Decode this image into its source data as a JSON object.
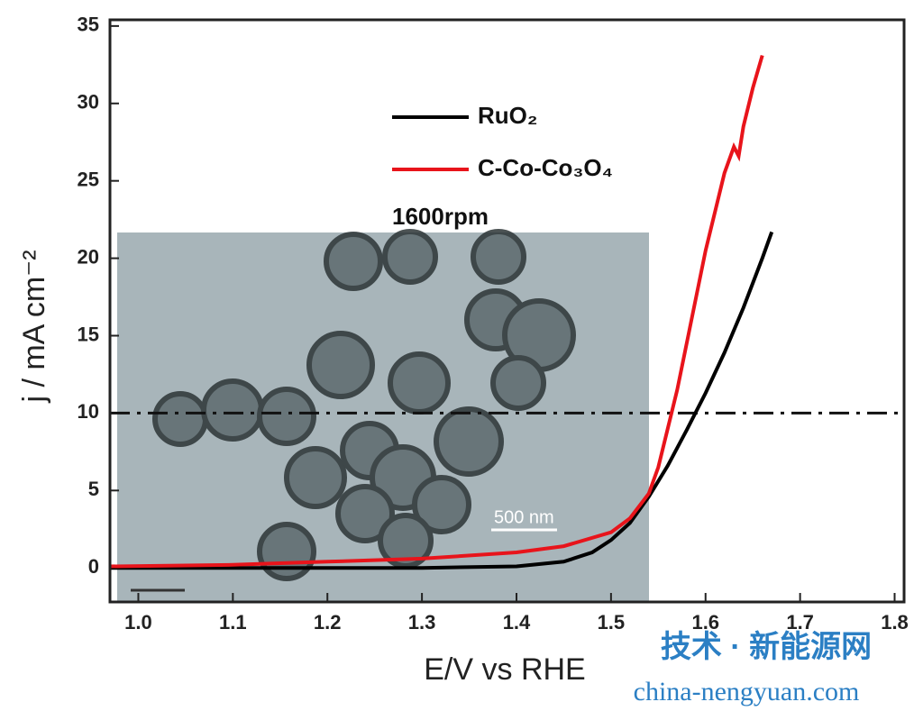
{
  "chart_data": {
    "type": "line",
    "ylabel": "j / mA cm⁻²",
    "xlabel": "E/V vs RHE",
    "annotation": "1600rpm",
    "inset_scale": "500 nm",
    "watermark": "技术 · 新能源网",
    "watermark_url": "china-nengyuan.com",
    "xlim": [
      0.97,
      1.81
    ],
    "ylim": [
      -2.2,
      35.4
    ],
    "xticks": [
      {
        "value": 1,
        "label": "1.0"
      },
      1.1,
      1.2,
      1.3,
      1.4,
      1.5,
      1.6,
      1.7,
      1.8
    ],
    "yticks": [
      0,
      5,
      10,
      15,
      20,
      25,
      30,
      35
    ],
    "hline": 10,
    "series": [
      {
        "name": "RuO₂",
        "color": "#000000",
        "x": [
          0.97,
          1.1,
          1.2,
          1.3,
          1.4,
          1.45,
          1.48,
          1.5,
          1.52,
          1.54,
          1.56,
          1.58,
          1.6,
          1.62,
          1.64,
          1.66,
          1.67
        ],
        "values": [
          0,
          0,
          0,
          0,
          0.1,
          0.4,
          1,
          1.8,
          2.9,
          4.6,
          6.6,
          8.9,
          11.3,
          13.9,
          16.8,
          20,
          21.7
        ]
      },
      {
        "name": "C-Co-Co₃O₄",
        "color": "#e8141b",
        "x": [
          0.97,
          1.1,
          1.2,
          1.3,
          1.4,
          1.45,
          1.5,
          1.52,
          1.54,
          1.55,
          1.56,
          1.57,
          1.58,
          1.6,
          1.62,
          1.63,
          1.635,
          1.64,
          1.65,
          1.66
        ],
        "values": [
          0.1,
          0.2,
          0.4,
          0.6,
          1,
          1.4,
          2.3,
          3.2,
          4.8,
          6.5,
          9,
          11.5,
          14.5,
          20.5,
          25.5,
          27.2,
          26.6,
          28.5,
          31,
          33.1
        ]
      }
    ]
  }
}
